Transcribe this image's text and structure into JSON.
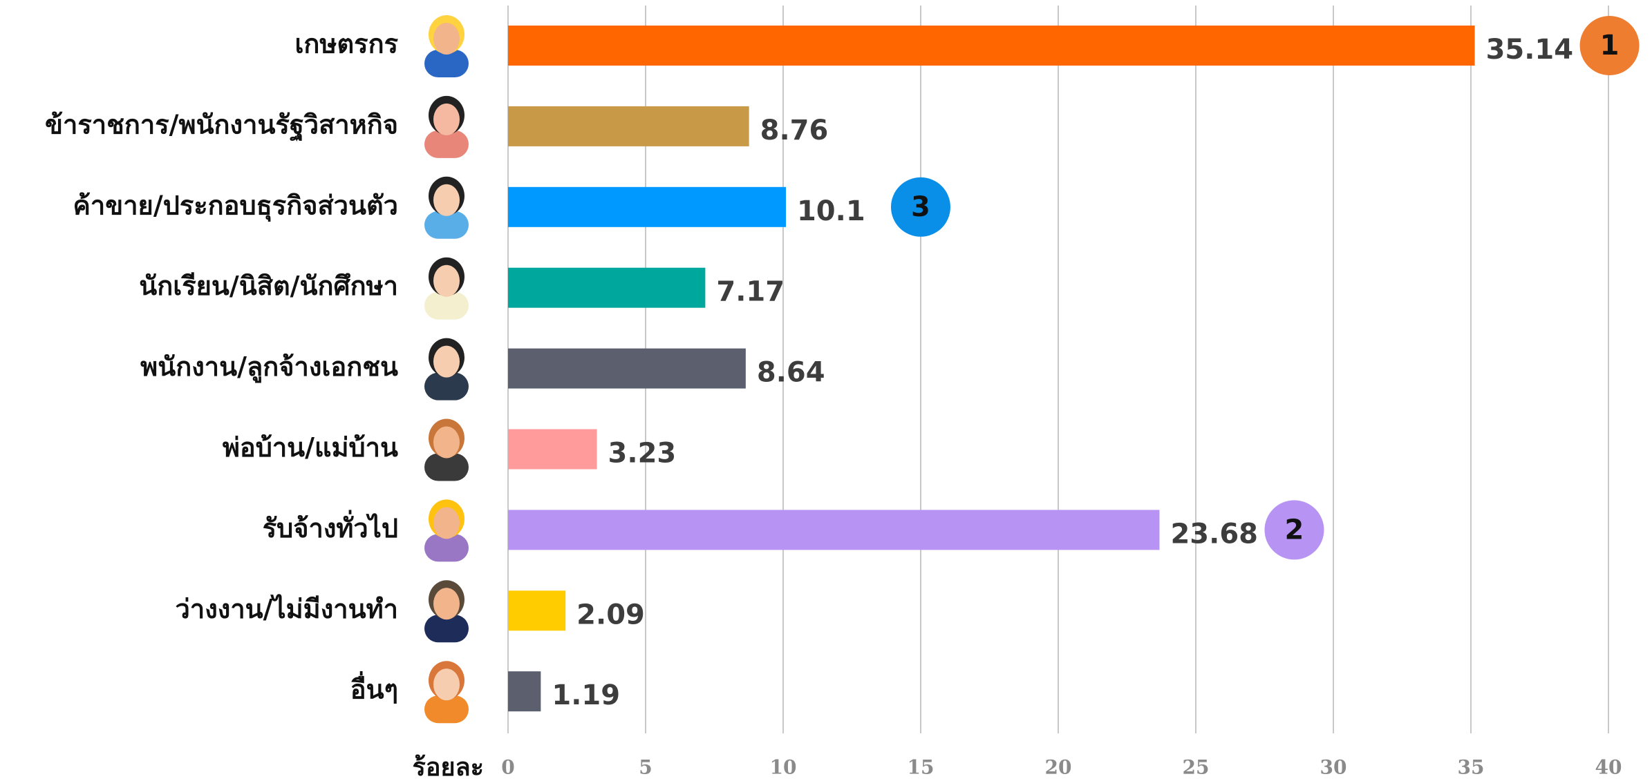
{
  "chart_data": {
    "type": "barh",
    "x_label": "ร้อยละ",
    "categories": [
      "เกษตรกร",
      "ข้าราชการ/พนักงานรัฐวิสาหกิจ",
      "ค้าขาย/ประกอบธุรกิจส่วนตัว",
      "นักเรียน/นิสิต/นักศึกษา",
      "พนักงาน/ลูกจ้างเอกชน",
      "พ่อบ้าน/แม่บ้าน",
      "รับจ้างทั่วไป",
      "ว่างงาน/ไม่มีงานทำ",
      "อื่นๆ"
    ],
    "values": [
      35.14,
      8.76,
      10.1,
      7.17,
      8.64,
      3.23,
      23.68,
      2.09,
      1.19
    ],
    "colors": [
      "#ff6600",
      "#c89a48",
      "#0099ff",
      "#00a79d",
      "#5c5f6e",
      "#ff9b9b",
      "#b794f4",
      "#ffcc00",
      "#5c5f6e"
    ],
    "rank_labels": [
      "1",
      null,
      "3",
      null,
      null,
      null,
      "2",
      null,
      null
    ],
    "rank_colors": [
      "#ef7d2f",
      null,
      "#0a8fe8",
      null,
      null,
      null,
      "#b794f4",
      null,
      null
    ],
    "xlim": [
      0,
      40
    ],
    "xticks": [
      0,
      5,
      10,
      15,
      20,
      25,
      30,
      35,
      40
    ],
    "grid": true
  }
}
